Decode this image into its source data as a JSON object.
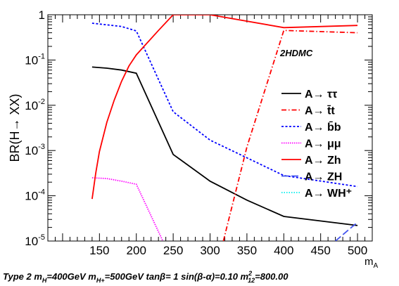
{
  "chart_data": {
    "type": "line",
    "title": "",
    "xlabel": "m",
    "xlabel_sub": "A",
    "ylabel": "BR(H→ XX)",
    "yscale": "log",
    "xlim": [
      80,
      520
    ],
    "ylim": [
      1e-05,
      1
    ],
    "xticks": [
      150,
      200,
      250,
      300,
      350,
      400,
      450,
      500
    ],
    "yticks": [
      {
        "value": 1e-05,
        "base": "10",
        "exp": "-5"
      },
      {
        "value": 0.0001,
        "base": "10",
        "exp": "-4"
      },
      {
        "value": 0.001,
        "base": "10",
        "exp": "-3"
      },
      {
        "value": 0.01,
        "base": "10",
        "exp": "-2"
      },
      {
        "value": 0.1,
        "base": "10",
        "exp": "-1"
      },
      {
        "value": 1,
        "base": "1",
        "exp": ""
      }
    ],
    "annotation": "2HDMC",
    "footer": "Type 2 m_H=400GeV m_H+=500GeV tanβ= 1 sin(β-α)=0.10 m²_12=800.00",
    "series": [
      {
        "name": "A→ ττ",
        "color": "#000000",
        "dash": "",
        "x": [
          140,
          160,
          180,
          200,
          250,
          300,
          350,
          400,
          500
        ],
        "y": [
          0.07,
          0.066,
          0.06,
          0.051,
          0.00082,
          0.00021,
          8e-05,
          3.5e-05,
          2.2e-05
        ]
      },
      {
        "name": "A→ t̄t",
        "color": "#ff0000",
        "dash": "7 3 1.5 3",
        "x": [
          318,
          350,
          400,
          500
        ],
        "y": [
          1e-05,
          0.0012,
          0.45,
          0.4
        ]
      },
      {
        "name": "A→ b̄b",
        "color": "#0000ff",
        "dash": "3 2.5",
        "x": [
          140,
          180,
          200,
          250,
          300,
          400,
          500
        ],
        "y": [
          0.65,
          0.55,
          0.44,
          0.0072,
          0.0017,
          0.00028,
          0.00016
        ]
      },
      {
        "name": "A→ μμ",
        "color": "#ff00ff",
        "dash": "1.5 1.5",
        "x": [
          140,
          160,
          180,
          200,
          236
        ],
        "y": [
          0.00025,
          0.00024,
          0.00021,
          0.00018,
          1e-05
        ]
      },
      {
        "name": "A→ Zh",
        "color": "#ff0000",
        "dash": "",
        "x": [
          140,
          145,
          150,
          160,
          170,
          180,
          190,
          200,
          230,
          250,
          300,
          400,
          500
        ],
        "y": [
          8.5e-05,
          0.00032,
          0.00095,
          0.0042,
          0.013,
          0.034,
          0.074,
          0.13,
          0.45,
          1.0,
          1.0,
          0.52,
          0.58
        ]
      },
      {
        "name": "A→ ZH",
        "color": "#4455ee",
        "dash": "10 4",
        "x": [
          470,
          500
        ],
        "y": [
          1e-05,
          2.6e-05
        ]
      },
      {
        "name": "A→ WH⁺",
        "color": "#00eeee",
        "dash": "1.5 2",
        "x": [],
        "y": []
      }
    ]
  }
}
